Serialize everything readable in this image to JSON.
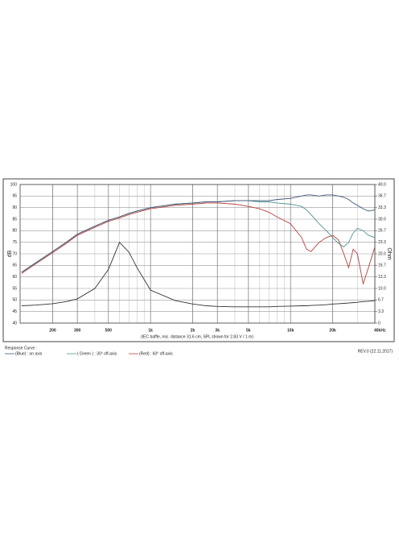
{
  "chart_data": {
    "type": "line",
    "log_x": true,
    "grid": true,
    "subtitle": "(IEC baffle, mic. distance 31.6 cm, SPL shown for 2.83 V / 1 m)",
    "ylabel": "dB",
    "y2label": "Ohm",
    "legend_title": "Response Curve :",
    "note": "REV.0 (22.11.2017)",
    "x": [
      120,
      150,
      200,
      250,
      300,
      400,
      500,
      600,
      700,
      800,
      1000,
      1500,
      2000,
      2500,
      3000,
      4000,
      5000,
      6000,
      7000,
      8000,
      10000,
      12000,
      13000,
      14000,
      16000,
      18000,
      20000,
      22000,
      24000,
      26000,
      28000,
      30000,
      33000,
      36000,
      40000
    ],
    "xlim": [
      117,
      40000
    ],
    "xticks": [
      200,
      300,
      500,
      {
        "value": 1000,
        "label": "1k"
      },
      {
        "value": 2000,
        "label": "2k"
      },
      {
        "value": 3000,
        "label": "3k"
      },
      {
        "value": 5000,
        "label": "5k"
      },
      {
        "value": 10000,
        "label": "10k"
      },
      {
        "value": 20000,
        "label": "20k"
      },
      {
        "value": 40000,
        "label": "40kHz"
      }
    ],
    "ylim": [
      40,
      100
    ],
    "yticks": [
      40,
      45,
      50,
      55,
      60,
      65,
      70,
      75,
      80,
      85,
      90,
      95,
      100
    ],
    "y2lim": [
      0,
      40
    ],
    "y2ticks": [
      {
        "value": 0,
        "label": "0"
      },
      3.3,
      6.7,
      {
        "value": 10,
        "label": "10.0"
      },
      13.3,
      16.7,
      {
        "value": 20,
        "label": "20.0"
      },
      23.3,
      26.7,
      {
        "value": 30,
        "label": "30.0"
      },
      33.3,
      36.7,
      {
        "value": 40,
        "label": "40.0"
      }
    ],
    "series": [
      {
        "name": "(Blue) : on axis",
        "color": "#3d5577",
        "values": [
          62,
          66,
          71,
          75,
          78.5,
          82,
          84.5,
          86,
          87.5,
          88.5,
          90,
          91.5,
          92,
          92.5,
          92.5,
          93,
          93,
          93,
          93,
          93.5,
          94,
          95,
          95.5,
          95.5,
          95,
          95.5,
          95.5,
          95,
          94.5,
          93.5,
          92,
          91,
          89.5,
          88.5,
          89
        ]
      },
      {
        "name": "( Green ) : 30° off-axis",
        "color": "#4f9393",
        "values": [
          62,
          66,
          71,
          75,
          78.5,
          82,
          84.5,
          86,
          87.5,
          88.5,
          90,
          91.5,
          92,
          92.5,
          92.5,
          93,
          93,
          92.5,
          92.5,
          92,
          91.5,
          90.5,
          89,
          87,
          83,
          80,
          77,
          74.5,
          73,
          75,
          79,
          81,
          80,
          78,
          77
        ]
      },
      {
        "name": "(Red) : 60° off-axis",
        "color": "#b8403c",
        "values": [
          61.5,
          65.5,
          70.5,
          74.5,
          78,
          81.5,
          84,
          85.5,
          87,
          88,
          89.5,
          91,
          91.5,
          92,
          92,
          91.5,
          90.5,
          89.5,
          88,
          86,
          83,
          77,
          72,
          71,
          75,
          77,
          78,
          76,
          70,
          64,
          72,
          70,
          57,
          64,
          73
        ]
      },
      {
        "color": "#333333",
        "axis": "y2",
        "values": [
          5.0,
          5.2,
          5.6,
          6.2,
          7.0,
          10.0,
          15.5,
          23.3,
          20.5,
          16.0,
          9.5,
          6.5,
          5.5,
          5.0,
          4.8,
          4.7,
          4.7,
          4.7,
          4.7,
          4.8,
          4.9,
          5.0,
          5.0,
          5.1,
          5.2,
          5.3,
          5.5,
          5.6,
          5.7,
          5.8,
          5.9,
          6.0,
          6.2,
          6.3,
          6.5
        ]
      }
    ]
  }
}
